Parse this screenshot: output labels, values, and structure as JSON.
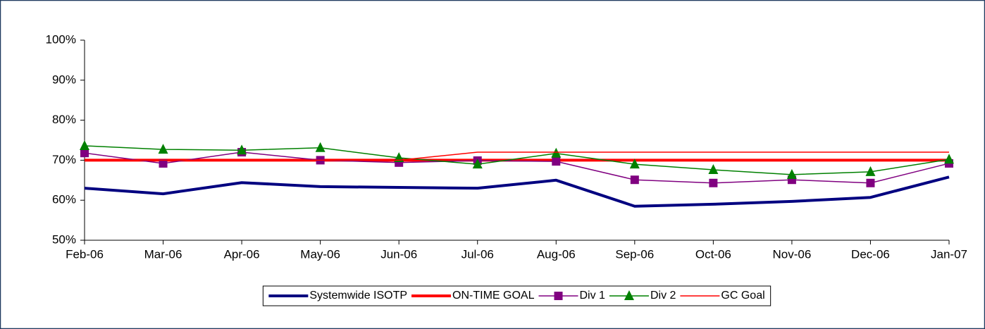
{
  "chart_data": {
    "type": "line",
    "categories": [
      "Feb-06",
      "Mar-06",
      "Apr-06",
      "May-06",
      "Jun-06",
      "Jul-06",
      "Aug-06",
      "Sep-06",
      "Oct-06",
      "Nov-06",
      "Dec-06",
      "Jan-07"
    ],
    "ylim": [
      50,
      100
    ],
    "yticks": [
      {
        "value": 50,
        "label": "50%"
      },
      {
        "value": 60,
        "label": "60%"
      },
      {
        "value": 70,
        "label": "70%"
      },
      {
        "value": 80,
        "label": "80%"
      },
      {
        "value": 90,
        "label": "90%"
      },
      {
        "value": 100,
        "label": "100%"
      }
    ],
    "grid": false,
    "legend": "bottom",
    "series": [
      {
        "name": "Systemwide ISOTP",
        "color": "#000080",
        "line_style": "thick",
        "marker": "none",
        "values": [
          63.0,
          61.6,
          64.4,
          63.4,
          63.2,
          63.0,
          65.0,
          58.5,
          59.0,
          59.7,
          60.7,
          65.8
        ]
      },
      {
        "name": "ON-TIME GOAL",
        "color": "#ff0000",
        "line_style": "thick",
        "marker": "none",
        "values": [
          70,
          70,
          70,
          70,
          70,
          70,
          70,
          70,
          70,
          70,
          70,
          70
        ]
      },
      {
        "name": "Div 1",
        "color": "#800080",
        "line_style": "thin",
        "marker": "square",
        "values": [
          71.8,
          69.2,
          72.0,
          70.0,
          69.4,
          69.9,
          69.7,
          65.1,
          64.3,
          65.1,
          64.3,
          69.2
        ]
      },
      {
        "name": "Div 2",
        "color": "#008000",
        "line_style": "thin",
        "marker": "triangle",
        "values": [
          73.6,
          72.7,
          72.5,
          73.1,
          70.6,
          69.0,
          71.7,
          69.0,
          67.6,
          66.4,
          67.1,
          70.2
        ]
      },
      {
        "name": "GC Goal",
        "color": "#ff0000",
        "line_style": "thin",
        "marker": "none",
        "values": [
          70,
          70,
          70,
          70,
          70,
          72,
          72,
          72,
          72,
          72,
          72,
          72
        ]
      }
    ]
  }
}
